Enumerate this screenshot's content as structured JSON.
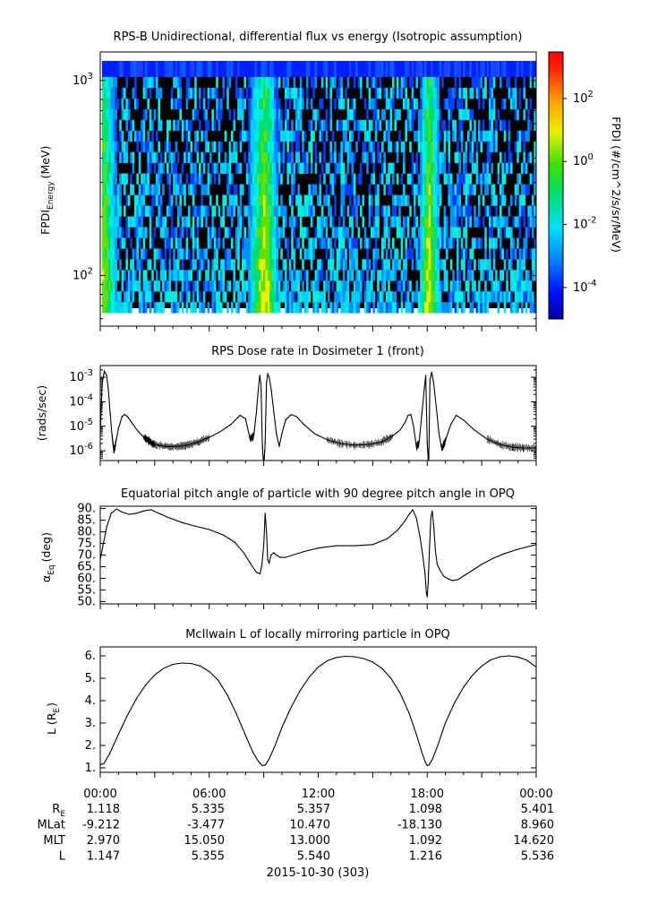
{
  "chart_data": [
    {
      "type": "heatmap",
      "title": "RPS-B  Unidirectional, differential flux vs energy (Isotropic assumption)",
      "ylabel": "FPDI",
      "ylabel_sub": "Energy",
      "ylabel_unit": "(MeV)",
      "yscale": "log",
      "ylim": [
        55,
        1400
      ],
      "yticks": [
        {
          "exp": "2",
          "value": 100
        },
        {
          "exp": "3",
          "value": 1000
        }
      ],
      "colorbar": {
        "label": "FPDI (#/cm^2/s/sr/MeV)",
        "scale": "log",
        "range": [
          1e-05,
          3000
        ],
        "ticks": [
          {
            "exp": "2",
            "value": 100
          },
          {
            "exp": "0",
            "value": 1
          },
          {
            "exp": "-2",
            "value": 0.01
          },
          {
            "exp": "-4",
            "value": 0.0001
          }
        ]
      }
    },
    {
      "type": "line",
      "title": "RPS  Dose rate in Dosimeter 1 (front)",
      "ylabel": "(rads/sec)",
      "yscale": "log",
      "ylim": [
        4e-07,
        0.003
      ],
      "yticks": [
        {
          "exp": "-3",
          "value": 0.001
        },
        {
          "exp": "-4",
          "value": 0.0001
        },
        {
          "exp": "-5",
          "value": 1e-05
        },
        {
          "exp": "-6",
          "value": 1e-06
        }
      ],
      "series": [
        {
          "x": [
            0.0,
            0.1,
            0.22,
            0.35,
            0.45,
            0.55,
            0.65,
            0.75,
            0.85,
            1.0,
            1.2,
            1.35,
            1.5,
            1.8,
            2.1,
            2.4,
            2.7,
            3.0,
            3.6,
            4.2,
            4.8,
            5.4,
            6.0,
            6.6,
            7.2,
            7.7,
            8.0,
            8.25,
            8.45,
            8.6,
            8.7,
            8.78,
            8.85,
            8.92,
            9.0,
            9.08,
            9.15,
            9.22,
            9.3,
            9.42,
            9.55,
            9.7,
            9.85,
            10.0,
            10.2,
            10.5,
            10.8,
            11.2,
            11.8,
            12.5,
            13.2,
            14.0,
            14.8,
            15.5,
            16.1,
            16.5,
            16.8,
            16.95,
            17.1,
            17.25,
            17.4,
            17.55,
            17.7,
            17.85,
            17.92,
            18.0,
            18.08,
            18.15,
            18.25,
            18.35,
            18.5,
            18.65,
            18.8,
            19.0,
            19.3,
            19.6,
            20.0,
            20.6,
            21.3,
            22.0,
            22.7,
            23.3,
            24.0
          ],
          "y": [
            4e-06,
            0.0005,
            0.0018,
            0.0012,
            0.0003,
            3e-05,
            4e-06,
            1e-06,
            2e-06,
            8e-06,
            2.5e-05,
            3e-05,
            2.5e-05,
            1.2e-05,
            6e-06,
            3.5e-06,
            2.5e-06,
            1.8e-06,
            1.5e-06,
            1.5e-06,
            1.7e-06,
            2.3e-06,
            3.5e-06,
            6e-06,
            1.2e-05,
            2.8e-05,
            2e-05,
            3e-06,
            4e-06,
            4e-05,
            0.0003,
            0.0012,
            0.0005,
            2e-06,
            2e-07,
            2e-06,
            0.0006,
            0.0014,
            0.001,
            0.0003,
            4e-05,
            5e-06,
            1.5e-06,
            5e-06,
            1.8e-05,
            3e-05,
            2.5e-05,
            1.2e-05,
            5e-06,
            2.8e-06,
            2e-06,
            1.7e-06,
            1.8e-06,
            2.3e-06,
            4e-06,
            7e-06,
            1.5e-05,
            2.8e-05,
            3e-05,
            1e-05,
            1.5e-06,
            2e-06,
            3e-05,
            0.0004,
            0.0012,
            2e-06,
            2e-07,
            0.0008,
            0.0016,
            0.0006,
            6e-05,
            5e-06,
            1.2e-06,
            2.5e-06,
            1.2e-05,
            2.8e-05,
            1.8e-05,
            7e-06,
            3e-06,
            1.8e-06,
            1.4e-06,
            1.3e-06,
            1.3e-06
          ]
        }
      ]
    },
    {
      "type": "line",
      "title": "Equatorial pitch angle of particle with 90 degree pitch angle in OPQ",
      "ylabel": "α",
      "ylabel_sub": "Eq",
      "ylabel_unit": "(deg)",
      "ylim": [
        49,
        91
      ],
      "yticks": [
        "90.",
        "85.",
        "80.",
        "75.",
        "70.",
        "65.",
        "60.",
        "55.",
        "50."
      ],
      "series": [
        {
          "x": [
            0.0,
            0.15,
            0.35,
            0.6,
            0.9,
            1.2,
            1.6,
            2.0,
            2.4,
            2.8,
            3.2,
            3.8,
            4.5,
            5.2,
            6.0,
            6.8,
            7.4,
            7.9,
            8.3,
            8.6,
            8.8,
            8.9,
            9.0,
            9.08,
            9.15,
            9.22,
            9.3,
            9.4,
            9.55,
            9.7,
            9.9,
            10.2,
            10.6,
            11.2,
            12.0,
            13.0,
            14.0,
            15.0,
            15.8,
            16.4,
            16.8,
            17.0,
            17.2,
            17.4,
            17.6,
            17.75,
            17.88,
            17.95,
            18.0,
            18.05,
            18.12,
            18.2,
            18.28,
            18.36,
            18.45,
            18.55,
            18.7,
            18.9,
            19.1,
            19.4,
            19.7,
            20.0,
            20.5,
            21.0,
            21.6,
            22.2,
            23.0,
            24.0
          ],
          "y": [
            68.0,
            74.0,
            82.0,
            88.0,
            89.8,
            88.5,
            87.5,
            88.0,
            89.0,
            89.5,
            88.0,
            86.0,
            84.0,
            82.5,
            81.0,
            78.5,
            75.5,
            71.0,
            66.0,
            62.5,
            62.0,
            66.0,
            74.0,
            88.0,
            80.0,
            68.0,
            66.5,
            70.0,
            71.0,
            70.0,
            69.0,
            69.0,
            70.0,
            71.5,
            73.0,
            74.0,
            74.0,
            74.5,
            77.0,
            81.0,
            85.0,
            87.5,
            89.5,
            86.0,
            78.0,
            70.0,
            62.0,
            54.0,
            52.0,
            58.0,
            72.0,
            86.0,
            89.0,
            82.0,
            72.0,
            66.0,
            63.5,
            61.0,
            60.0,
            59.0,
            59.5,
            61.0,
            63.5,
            66.0,
            68.5,
            70.5,
            72.5,
            74.5
          ]
        }
      ]
    },
    {
      "type": "line",
      "title": "McIlwain L of locally mirroring particle in OPQ",
      "ylabel": "L (R",
      "ylabel_sub": "E",
      "ylabel_unit": ")",
      "ylim": [
        0.8,
        6.4
      ],
      "yticks": [
        "6.",
        "5.",
        "4.",
        "3.",
        "2.",
        "1."
      ],
      "series": [
        {
          "x": [
            0.0,
            0.2,
            0.5,
            1.0,
            1.5,
            2.0,
            2.5,
            3.0,
            3.5,
            4.0,
            4.5,
            5.0,
            5.5,
            6.0,
            6.5,
            7.0,
            7.5,
            8.0,
            8.4,
            8.7,
            8.9,
            9.0,
            9.1,
            9.3,
            9.6,
            10.0,
            10.5,
            11.0,
            11.5,
            12.0,
            12.5,
            13.0,
            13.5,
            14.0,
            14.5,
            15.0,
            15.5,
            16.0,
            16.5,
            17.0,
            17.4,
            17.7,
            17.9,
            18.0,
            18.1,
            18.3,
            18.6,
            19.0,
            19.5,
            20.0,
            20.5,
            21.0,
            21.5,
            22.0,
            22.5,
            23.0,
            23.5,
            24.0
          ],
          "y": [
            1.15,
            1.2,
            1.6,
            2.5,
            3.35,
            4.1,
            4.7,
            5.15,
            5.45,
            5.62,
            5.68,
            5.66,
            5.55,
            5.3,
            4.9,
            4.25,
            3.4,
            2.45,
            1.7,
            1.3,
            1.12,
            1.1,
            1.15,
            1.4,
            1.95,
            2.8,
            3.7,
            4.45,
            5.05,
            5.5,
            5.78,
            5.93,
            5.98,
            5.96,
            5.88,
            5.72,
            5.45,
            5.0,
            4.35,
            3.45,
            2.5,
            1.7,
            1.25,
            1.1,
            1.13,
            1.4,
            2.05,
            3.0,
            3.9,
            4.6,
            5.15,
            5.55,
            5.82,
            5.96,
            6.0,
            5.95,
            5.8,
            5.5
          ]
        }
      ]
    }
  ],
  "xaxis": {
    "range": [
      0,
      24
    ],
    "ticks": [
      {
        "hours": 0,
        "label": "00:00"
      },
      {
        "hours": 6,
        "label": "06:00"
      },
      {
        "hours": 12,
        "label": "12:00"
      },
      {
        "hours": 18,
        "label": "18:00"
      },
      {
        "hours": 24,
        "label": "00:00"
      }
    ],
    "date_label": "2015-10-30 (303)"
  },
  "ephemeris": {
    "rows": [
      {
        "name": "R",
        "sub": "E",
        "values": [
          "1.118",
          "5.335",
          "5.357",
          "1.098",
          "5.401"
        ]
      },
      {
        "name": "MLat",
        "sub": "",
        "values": [
          "-9.212",
          "-3.477",
          "10.470",
          "-18.130",
          "8.960"
        ]
      },
      {
        "name": "MLT",
        "sub": "",
        "values": [
          "2.970",
          "15.050",
          "13.000",
          "1.092",
          "14.620"
        ]
      },
      {
        "name": "L",
        "sub": "",
        "values": [
          "1.147",
          "5.355",
          "5.540",
          "1.216",
          "5.536"
        ]
      }
    ]
  }
}
